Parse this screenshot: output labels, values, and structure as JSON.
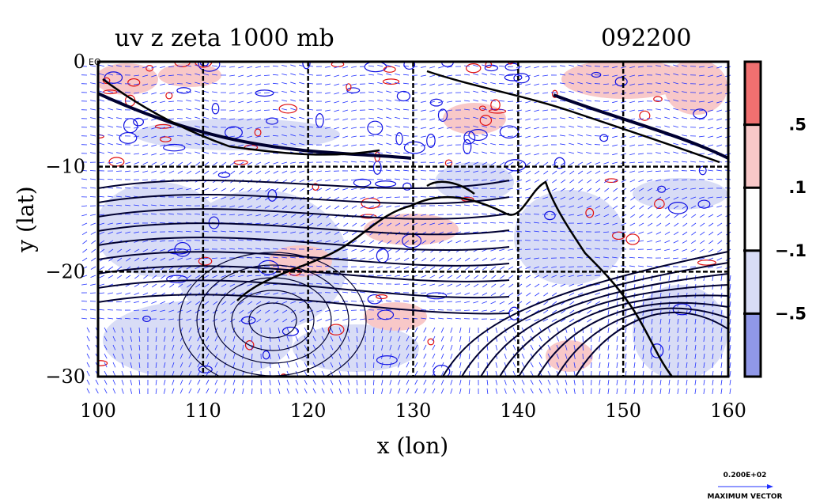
{
  "chart_data": {
    "type": "heatmap",
    "title": "uv z zeta 1000 mb",
    "time_label": "092200",
    "xlabel": "x (lon)",
    "ylabel": "y (lat)",
    "xlim": [
      100,
      160
    ],
    "ylim": [
      -30,
      0
    ],
    "x_ticks": [
      "100",
      "110",
      "120",
      "130",
      "140",
      "150",
      "160"
    ],
    "y_ticks": [
      "0",
      "−10",
      "−20",
      "−30"
    ],
    "y_tick_suffix": "EQ",
    "x_tick_values": [
      100,
      110,
      120,
      130,
      140,
      150,
      160
    ],
    "y_tick_values": [
      0,
      -10,
      -20,
      -30
    ],
    "grid": true,
    "colorbar": {
      "labels": [
        ".5",
        ".1",
        "−.1",
        "−.5"
      ],
      "label_values": [
        0.5,
        0.1,
        -0.1,
        -0.5
      ],
      "levels": [
        1,
        0.5,
        0.1,
        -0.1,
        -0.5,
        -1
      ],
      "colors": [
        "#f07070",
        "#f8c8c8",
        "#ffffff",
        "#d8dcf6",
        "#9098e8"
      ]
    },
    "vector_legend": {
      "value_label": "0.200E+02",
      "caption": "MAXIMUM VECTOR"
    },
    "colors": {
      "positive_contour": "#e01010",
      "negative_contour": "#1010e0",
      "height_contour": "#000030",
      "vector": "#2030ff"
    }
  }
}
